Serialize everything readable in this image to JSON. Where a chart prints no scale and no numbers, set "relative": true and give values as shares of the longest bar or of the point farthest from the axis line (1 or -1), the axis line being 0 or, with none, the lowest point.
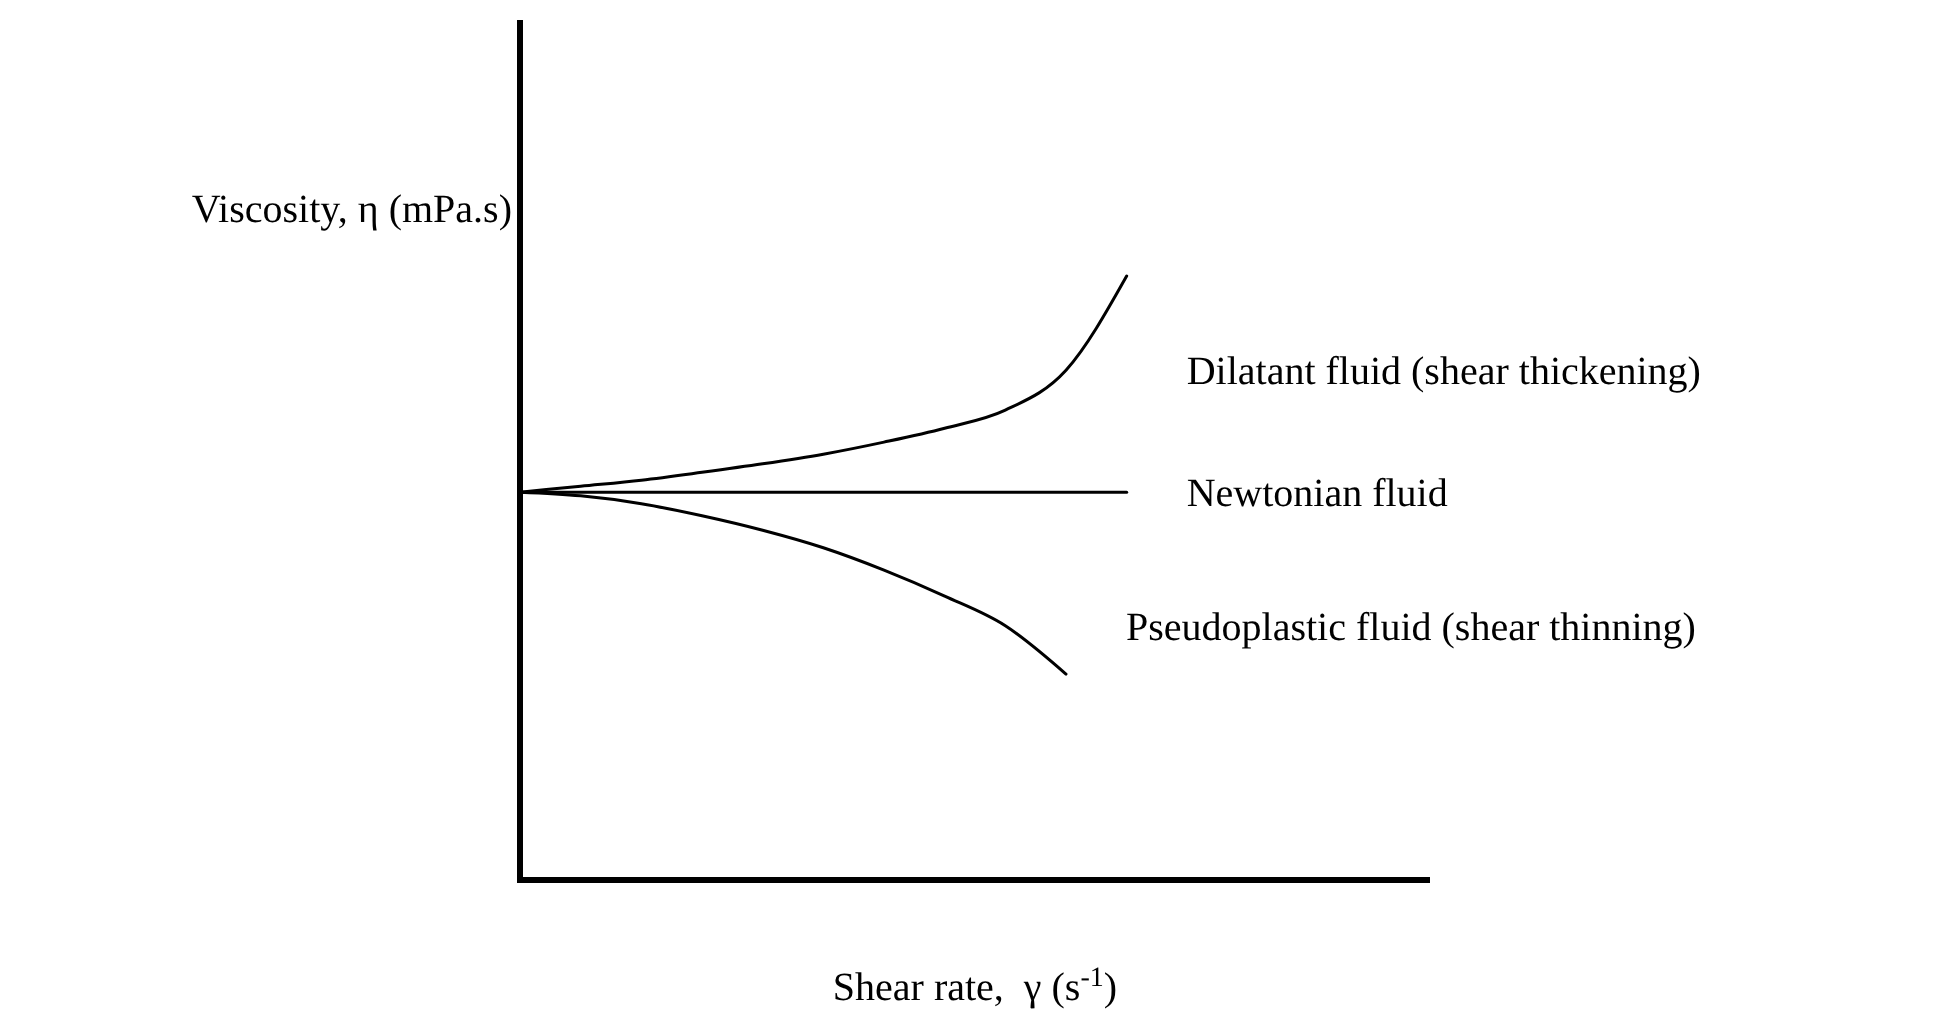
{
  "chart_data": {
    "type": "line",
    "relative": true,
    "xlabel": "Shear rate,  γ (s$^{-1}$)",
    "ylabel": "Viscosity, η (mPa.s)",
    "categories": [
      null,
      null,
      null,
      null,
      null,
      null,
      null,
      null,
      null,
      null,
      null,
      null,
      null,
      null,
      null,
      null
    ],
    "line_style": "solid",
    "marker": "none",
    "series": [
      {
        "name": "Dilatant fluid (shear thickening)",
        "color": "#000000",
        "values": [
          0.642,
          0.652,
          0.662,
          0.675,
          0.689,
          0.705,
          0.725,
          0.748,
          0.778,
          0.844,
          1,
          null,
          null,
          null,
          null,
          null
        ]
      },
      {
        "name": "Newtonian fluid",
        "color": "#000000",
        "values": [
          0.642,
          0.642,
          0.642,
          0.642,
          0.642,
          0.642,
          0.642,
          0.642,
          0.642,
          0.642,
          0.642,
          null,
          null,
          null,
          null,
          null
        ]
      },
      {
        "name": "Pseudoplastic fluid (shear thinning)",
        "color": "#000000",
        "values": [
          0.642,
          0.636,
          0.623,
          0.603,
          0.579,
          0.55,
          0.513,
          0.47,
          0.421,
          0.341,
          null,
          null,
          null,
          null,
          null,
          null
        ]
      }
    ]
  }
}
